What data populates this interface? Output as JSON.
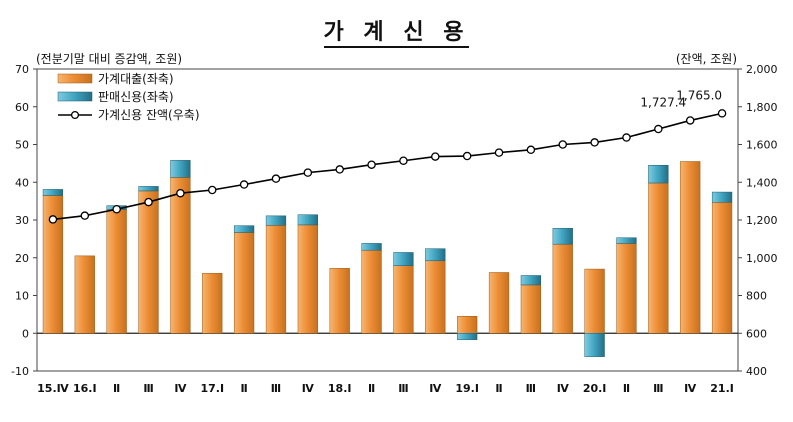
{
  "chart_data": {
    "type": "bar",
    "title": "가 계 신 용",
    "left_unit": "(전분기말 대비 증감액, 조원)",
    "right_unit": "(잔액, 조원)",
    "categories": [
      "15.Ⅳ",
      "16.Ⅰ",
      "Ⅱ",
      "Ⅲ",
      "Ⅳ",
      "17.Ⅰ",
      "Ⅱ",
      "Ⅲ",
      "Ⅳ",
      "18.Ⅰ",
      "Ⅱ",
      "Ⅲ",
      "Ⅳ",
      "19.Ⅰ",
      "Ⅱ",
      "Ⅲ",
      "Ⅳ",
      "20.Ⅰ",
      "Ⅱ",
      "Ⅲ",
      "Ⅳ",
      "21.Ⅰ"
    ],
    "left_axis": {
      "ylim": [
        -10,
        70
      ],
      "ticks": [
        "-10",
        "0",
        "10",
        "20",
        "30",
        "40",
        "50",
        "60",
        "70"
      ]
    },
    "right_axis": {
      "ylim": [
        400,
        2000
      ],
      "ticks": [
        "400",
        "600",
        "800",
        "1,000",
        "1,200",
        "1,400",
        "1,600",
        "1,800",
        "2,000"
      ]
    },
    "grid": false,
    "legend_position": "top-left",
    "series": [
      {
        "name": "가계대출(좌축)",
        "type": "bar",
        "axis": "left",
        "color": "#ED8E37",
        "values": [
          36.5,
          20.5,
          32.8,
          37.7,
          41.3,
          15.9,
          26.7,
          28.6,
          28.7,
          17.2,
          22.0,
          17.9,
          19.2,
          4.5,
          16.1,
          12.8,
          23.6,
          17.0,
          23.8,
          39.8,
          45.5,
          34.7
        ]
      },
      {
        "name": "판매신용(좌축)",
        "type": "bar",
        "axis": "left",
        "color": "#4BACC6",
        "values": [
          1.6,
          0.0,
          1.0,
          1.2,
          4.5,
          0.0,
          1.8,
          2.5,
          2.7,
          0.0,
          1.8,
          3.5,
          3.2,
          -1.7,
          0.0,
          2.5,
          4.2,
          -6.2,
          1.5,
          4.7,
          0.0,
          2.7
        ]
      },
      {
        "name": "가계신용 잔액(우축)",
        "type": "line",
        "axis": "right",
        "color": "#000000",
        "values": [
          1203,
          1223,
          1257,
          1295,
          1342,
          1359,
          1388,
          1419,
          1451,
          1468,
          1493,
          1514,
          1536,
          1539,
          1557,
          1572,
          1600,
          1611,
          1637,
          1682,
          1727.4,
          1765.0
        ]
      }
    ],
    "annotations": [
      "1,727.4",
      "1,765.0"
    ]
  }
}
